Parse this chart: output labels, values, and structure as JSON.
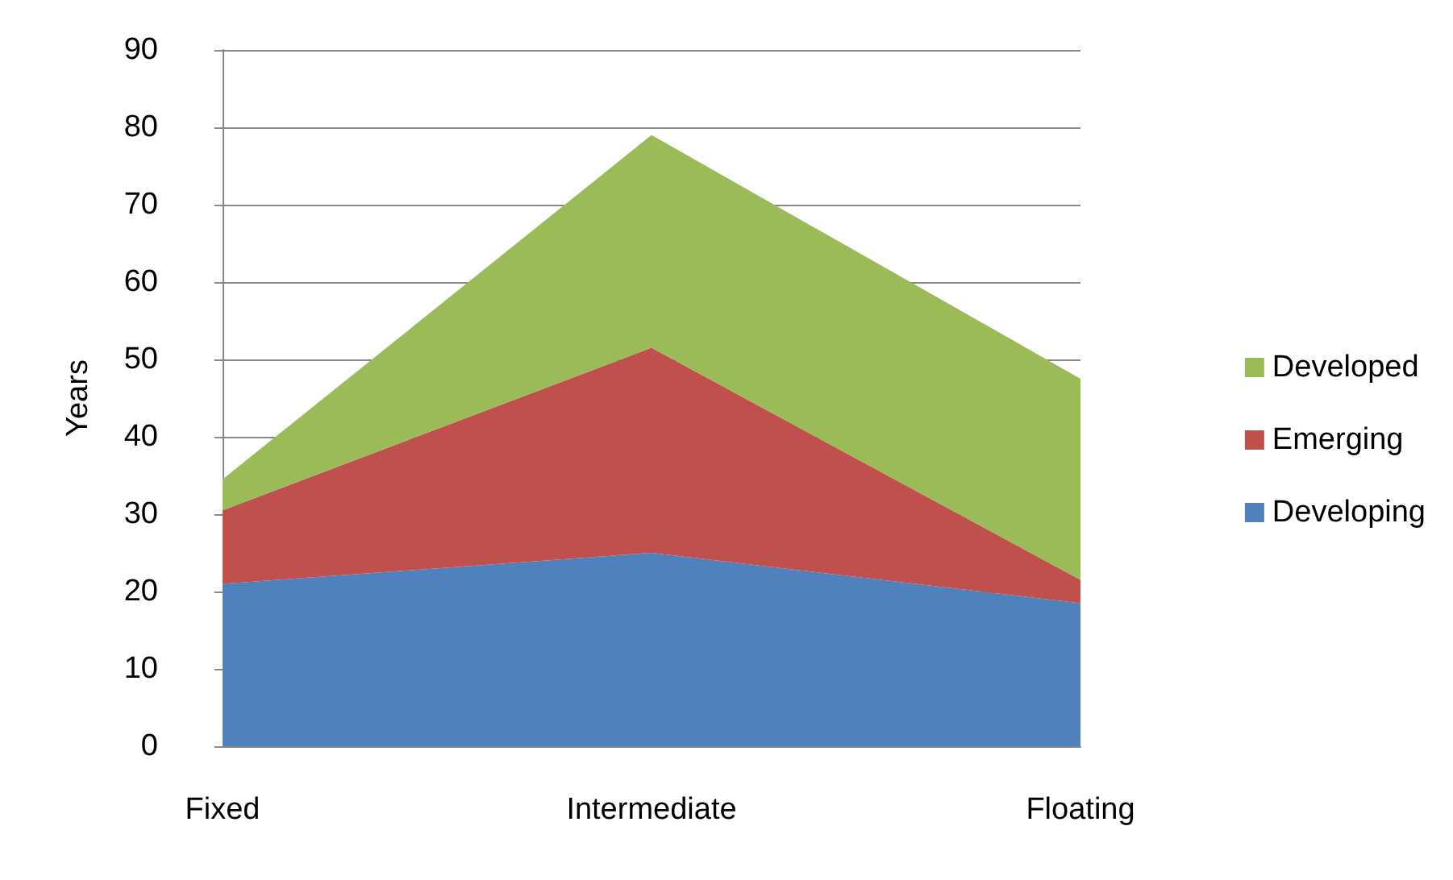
{
  "chart_data": {
    "type": "area",
    "ylabel": "Years",
    "categories": [
      "Fixed",
      "Intermediate",
      "Floating"
    ],
    "series": [
      {
        "name": "Developing",
        "color": "#4f81bd",
        "values": [
          21,
          25,
          18.5
        ]
      },
      {
        "name": "Emerging",
        "color": "#c0504d",
        "values": [
          9.5,
          26.5,
          3
        ]
      },
      {
        "name": "Developed",
        "color": "#9bbb59",
        "values": [
          4,
          27.5,
          26
        ]
      }
    ],
    "stacked": true,
    "ylim": [
      0,
      90
    ],
    "yticks": [
      0,
      10,
      20,
      30,
      40,
      50,
      60,
      70,
      80,
      90
    ],
    "grid": "y",
    "legend": "right"
  }
}
